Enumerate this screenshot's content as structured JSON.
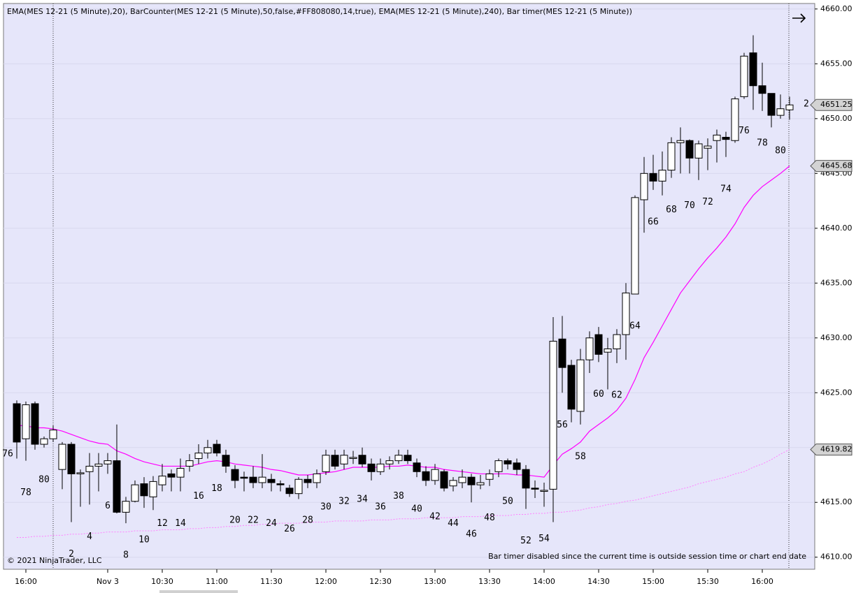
{
  "chart_data": {
    "type": "candlestick",
    "title": "EMA(MES 12-21 (5 Minute),20), BarCounter(MES 12-21 (5 Minute),50,false,#FF808080,14,true), EMA(MES 12-21 (5 Minute),240), Bar timer(MES 12-21 (5 Minute))",
    "copyright": "© 2021 NinjaTrader, LLC",
    "timer_message": "Bar timer disabled since the current time is outside session time or chart end date",
    "right_marker": "2",
    "categories": [
      null,
      null,
      "16:00",
      null,
      null,
      null,
      null,
      null,
      null,
      null,
      null,
      "Nov 3",
      null,
      null,
      null,
      null,
      null,
      "10:30",
      null,
      null,
      null,
      null,
      null,
      "11:00",
      null,
      null,
      null,
      null,
      null,
      "11:30",
      null,
      null,
      null,
      null,
      null,
      "12:00",
      null,
      null,
      null,
      null,
      null,
      "12:30",
      null,
      null,
      null,
      null,
      null,
      "13:00",
      null,
      null,
      null,
      null,
      null,
      "13:30",
      null,
      null,
      null,
      null,
      null,
      "14:00",
      null,
      null,
      null,
      null,
      null,
      "14:30",
      null,
      null,
      null,
      null,
      null,
      "15:00",
      null,
      null,
      null,
      null,
      null,
      "15:30",
      null,
      null,
      null,
      null,
      null,
      "16:00",
      null,
      null,
      null
    ],
    "open": [
      null,
      4624.0,
      4620.8,
      4624.0,
      4620.3,
      4620.8,
      4618.0,
      4620.3,
      4617.6,
      4617.8,
      4618.3,
      4618.5,
      4618.8,
      4614.1,
      4615.1,
      4616.7,
      4615.5,
      4616.6,
      4617.6,
      4617.3,
      4618.3,
      4619.0,
      4619.5,
      4620.3,
      4619.3,
      4618.0,
      4617.3,
      4617.3,
      4616.8,
      4617.1,
      4616.7,
      4616.3,
      4615.8,
      4617.1,
      4616.8,
      4617.8,
      4619.3,
      4618.5,
      4619.0,
      4619.3,
      4618.5,
      4617.8,
      4618.5,
      4618.8,
      4619.3,
      4618.6,
      4617.8,
      4617.0,
      4617.8,
      4616.5,
      4616.8,
      4617.3,
      4616.6,
      4617.1,
      4617.8,
      4618.8,
      4618.6,
      4618.0,
      4616.3,
      4616.0,
      4616.2,
      4629.9,
      4627.5,
      4623.3,
      4628.0,
      4630.3,
      4628.7,
      4629.0,
      4630.3,
      4634.0,
      4642.6,
      4645.0,
      4644.3,
      4645.3,
      4647.8,
      4648.0,
      4646.4,
      4647.3,
      4648.0,
      4648.3,
      4648.0,
      4652.0,
      4656.0,
      4653.0,
      4652.3,
      4650.3,
      4650.8
    ],
    "high": [
      null,
      4624.3,
      4624.2,
      4624.2,
      4621.0,
      4622.0,
      4620.5,
      4620.5,
      4618.0,
      4619.5,
      4619.5,
      4619.5,
      4622.1,
      4615.5,
      4617.0,
      4617.3,
      4617.4,
      4618.5,
      4618.0,
      4619.0,
      4619.4,
      4620.3,
      4620.7,
      4620.7,
      4619.8,
      4618.4,
      4617.8,
      4618.3,
      4619.4,
      4617.6,
      4617.0,
      4616.6,
      4617.3,
      4617.5,
      4618.0,
      4619.8,
      4619.8,
      4619.8,
      4619.7,
      4620.0,
      4619.0,
      4619.0,
      4619.2,
      4619.8,
      4619.8,
      4619.0,
      4618.3,
      4618.5,
      4618.0,
      4617.3,
      4618.0,
      4617.6,
      4617.5,
      4618.0,
      4619.0,
      4619.0,
      4619.0,
      4618.4,
      4617.0,
      4616.8,
      4631.9,
      4632.0,
      4628.0,
      4629.0,
      4630.6,
      4631.0,
      4630.0,
      4630.8,
      4635.0,
      4643.0,
      4646.5,
      4646.7,
      4647.0,
      4648.3,
      4649.2,
      4648.1,
      4648.0,
      4648.2,
      4649.0,
      4648.8,
      4652.0,
      4656.0,
      4657.6,
      4655.1,
      4652.3,
      4652.2,
      4652.0
    ],
    "low": [
      null,
      4619.0,
      4618.8,
      4619.8,
      4620.0,
      4620.5,
      4616.2,
      4613.2,
      4614.6,
      4614.8,
      4616.0,
      4617.6,
      4614.0,
      4613.1,
      4615.0,
      4614.5,
      4614.3,
      4616.0,
      4616.0,
      4616.0,
      4617.8,
      4618.5,
      4619.0,
      4619.2,
      4617.7,
      4616.3,
      4616.0,
      4616.3,
      4616.3,
      4616.0,
      4616.0,
      4615.5,
      4615.3,
      4616.3,
      4616.3,
      4617.5,
      4618.0,
      4618.0,
      4618.5,
      4618.2,
      4617.0,
      4617.5,
      4618.0,
      4618.5,
      4618.5,
      4617.3,
      4616.5,
      4616.6,
      4616.0,
      4616.0,
      4616.3,
      4615.0,
      4616.2,
      4616.5,
      4617.3,
      4618.0,
      4617.5,
      4614.4,
      4615.4,
      4614.6,
      4613.2,
      4625.0,
      4622.3,
      4622.1,
      4626.8,
      4627.8,
      4625.3,
      4627.7,
      4628.0,
      4634.0,
      4639.6,
      4643.5,
      4643.0,
      4644.6,
      4645.0,
      4645.0,
      4644.4,
      4645.3,
      4646.0,
      4646.5,
      4647.8,
      4651.8,
      4650.8,
      4650.7,
      4649.2,
      4650.0,
      4649.9
    ],
    "close": [
      null,
      4620.5,
      4623.9,
      4620.3,
      4620.8,
      4621.6,
      4620.3,
      4617.6,
      4617.7,
      4618.3,
      4618.5,
      4618.8,
      4614.1,
      4615.1,
      4616.6,
      4615.6,
      4616.9,
      4617.4,
      4617.3,
      4618.1,
      4618.8,
      4619.5,
      4620.0,
      4619.5,
      4618.3,
      4617.0,
      4617.2,
      4616.8,
      4617.3,
      4616.8,
      4616.6,
      4615.8,
      4617.1,
      4616.8,
      4617.6,
      4619.3,
      4618.3,
      4619.3,
      4619.1,
      4618.5,
      4617.8,
      4618.5,
      4618.8,
      4619.3,
      4618.8,
      4617.8,
      4617.0,
      4618.0,
      4616.3,
      4617.0,
      4617.3,
      4616.6,
      4616.8,
      4617.6,
      4618.8,
      4618.5,
      4618.0,
      4616.3,
      4616.2,
      4616.1,
      4629.7,
      4627.3,
      4623.5,
      4628.0,
      4630.0,
      4628.5,
      4629.0,
      4630.3,
      4634.1,
      4642.8,
      4645.0,
      4644.3,
      4645.3,
      4647.8,
      4648.0,
      4646.4,
      4647.7,
      4647.5,
      4648.5,
      4648.1,
      4651.8,
      4655.7,
      4653.0,
      4652.3,
      4650.3,
      4650.9,
      4651.25
    ],
    "last_close_label": "4651.25",
    "up_color": "#ffffff",
    "down_color": "#000000",
    "bar_labels": [
      76,
      null,
      78,
      null,
      80,
      null,
      null,
      2,
      null,
      4,
      null,
      6,
      null,
      8,
      null,
      10,
      null,
      12,
      null,
      14,
      null,
      16,
      null,
      18,
      null,
      20,
      null,
      22,
      null,
      24,
      null,
      26,
      null,
      28,
      null,
      30,
      null,
      32,
      null,
      34,
      null,
      36,
      null,
      38,
      null,
      40,
      null,
      42,
      null,
      44,
      null,
      46,
      null,
      48,
      null,
      50,
      null,
      52,
      null,
      54,
      null,
      56,
      null,
      58,
      null,
      60,
      null,
      62,
      null,
      64,
      null,
      66,
      null,
      68,
      null,
      70,
      null,
      72,
      null,
      74,
      null,
      76,
      null,
      78,
      null,
      80,
      null
    ],
    "bar_label_color": "#808080",
    "series": [
      {
        "color": "#ff00ff",
        "dashed": false,
        "last_label": "4645.68",
        "values": [
          null,
          4622.0,
          4622.0,
          4621.8,
          4621.8,
          4621.7,
          4621.5,
          4621.2,
          4620.9,
          4620.6,
          4620.4,
          4620.3,
          4619.7,
          4619.4,
          4619.0,
          4618.7,
          4618.5,
          4618.3,
          4618.3,
          4618.3,
          4618.3,
          4618.5,
          4618.7,
          4618.8,
          4618.7,
          4618.5,
          4618.4,
          4618.3,
          4618.2,
          4618.0,
          4617.9,
          4617.7,
          4617.5,
          4617.5,
          4617.6,
          4617.7,
          4617.8,
          4618.0,
          4618.2,
          4618.2,
          4618.2,
          4618.2,
          4618.3,
          4618.3,
          4618.4,
          4618.3,
          4618.2,
          4618.2,
          4618.0,
          4617.9,
          4617.8,
          4617.7,
          4617.6,
          4617.6,
          4617.6,
          4617.6,
          4617.5,
          4617.5,
          4617.4,
          4617.3,
          4618.4,
          4619.4,
          4619.9,
          4620.5,
          4621.5,
          4622.1,
          4622.7,
          4623.4,
          4624.5,
          4626.2,
          4628.2,
          4629.6,
          4631.1,
          4632.6,
          4634.1,
          4635.2,
          4636.3,
          4637.3,
          4638.2,
          4639.2,
          4640.4,
          4641.9,
          4643.0,
          4643.8,
          4644.4,
          4645.0,
          4645.68
        ]
      },
      {
        "color": "#ff80ff",
        "dashed": true,
        "last_label": "4619.82",
        "values": [
          null,
          4611.8,
          4611.8,
          4611.9,
          4611.9,
          4612.0,
          4612.0,
          4612.1,
          4612.1,
          4612.2,
          4612.2,
          4612.3,
          4612.3,
          4612.3,
          4612.4,
          4612.4,
          4612.4,
          4612.5,
          4612.5,
          4612.5,
          4612.6,
          4612.6,
          4612.7,
          4612.7,
          4612.8,
          4612.8,
          4612.9,
          4612.9,
          4613.0,
          4613.0,
          4613.1,
          4613.1,
          4613.1,
          4613.2,
          4613.2,
          4613.2,
          4613.3,
          4613.3,
          4613.3,
          4613.3,
          4613.4,
          4613.4,
          4613.4,
          4613.5,
          4613.5,
          4613.5,
          4613.6,
          4613.6,
          4613.6,
          4613.6,
          4613.7,
          4613.7,
          4613.7,
          4613.8,
          4613.8,
          4613.8,
          4613.9,
          4613.9,
          4614.0,
          4614.0,
          4614.1,
          4614.1,
          4614.2,
          4614.3,
          4614.5,
          4614.6,
          4614.8,
          4614.9,
          4615.1,
          4615.2,
          4615.4,
          4615.6,
          4615.8,
          4616.0,
          4616.2,
          4616.4,
          4616.7,
          4616.9,
          4617.1,
          4617.3,
          4617.6,
          4617.8,
          4618.2,
          4618.5,
          4618.9,
          4619.4,
          4619.82
        ]
      }
    ],
    "ylim": [
      4608.9,
      4660.5
    ],
    "yticks": [
      {
        "value": 4610,
        "label": "4610.00"
      },
      {
        "value": 4615,
        "label": "4615.00"
      },
      {
        "value": 4620,
        "label": "4620.00"
      },
      {
        "value": 4625,
        "label": "4625.00"
      },
      {
        "value": 4630,
        "label": "4630.00"
      },
      {
        "value": 4635,
        "label": "4635.00"
      },
      {
        "value": 4640,
        "label": "4640.00"
      },
      {
        "value": 4645,
        "label": "4645.00"
      },
      {
        "value": 4650,
        "label": "4650.00"
      },
      {
        "value": 4655,
        "label": "4655.00"
      },
      {
        "value": 4660,
        "label": "4660.00"
      }
    ],
    "grid": true
  }
}
